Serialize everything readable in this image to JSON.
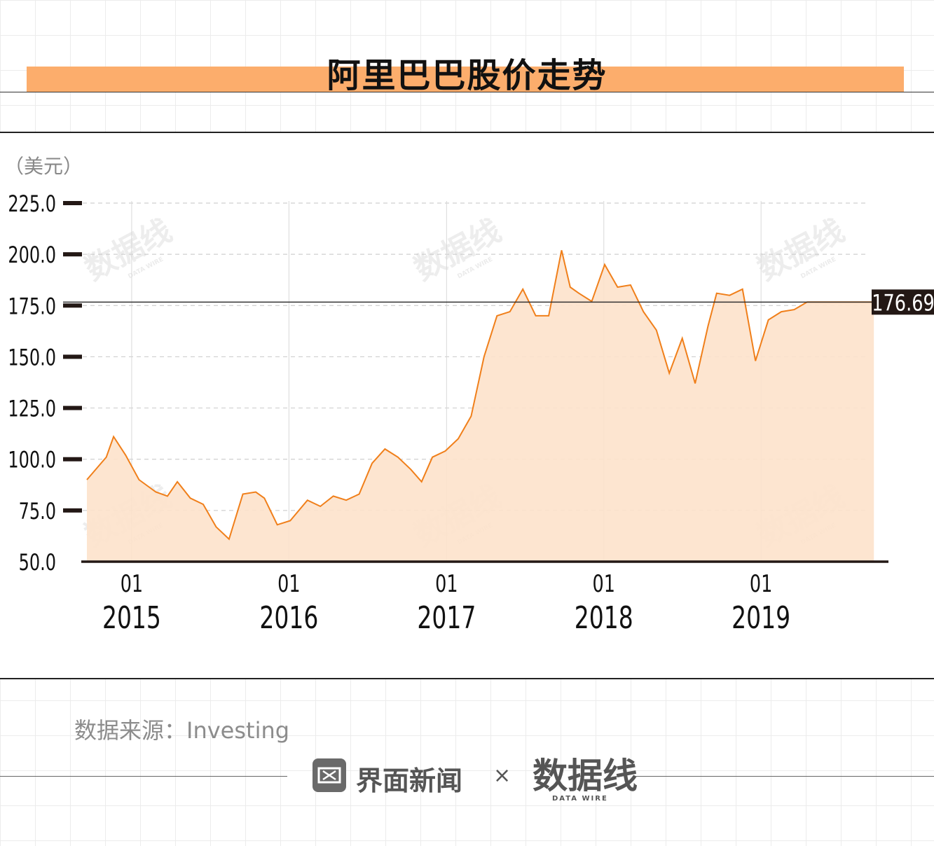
{
  "title": "阿里巴巴股价走势",
  "source": "数据来源：Investing",
  "footer": {
    "brand": "界面新闻",
    "separator": "×",
    "partner": "数据线",
    "partner_sub": "DATA WIRE"
  },
  "watermark": {
    "text": "数据线",
    "sub": "DATA WIRE"
  },
  "colors": {
    "accent": "#f07f1a",
    "fill": "#fde2cb",
    "title_band": "#fcad6c",
    "dark": "#231815"
  },
  "chart_data": {
    "type": "area",
    "title": "阿里巴巴股价走势",
    "ylabel": "（美元）",
    "ylim": [
      50,
      225
    ],
    "yticks": [
      "225.0",
      "200.0",
      "175.0",
      "150.0",
      "125.0",
      "100.0",
      "75.0",
      "50.0"
    ],
    "year_ticks": [
      {
        "month": "01",
        "year": "2015",
        "date": "2015-01-01"
      },
      {
        "month": "01",
        "year": "2016",
        "date": "2016-01-01"
      },
      {
        "month": "01",
        "year": "2017",
        "date": "2017-01-01"
      },
      {
        "month": "01",
        "year": "2018",
        "date": "2018-01-01"
      },
      {
        "month": "01",
        "year": "2019",
        "date": "2019-01-01"
      }
    ],
    "xlim": [
      "2014-09-19",
      "2019-10-01"
    ],
    "latest_value": "176.69",
    "reference_line": 176.69,
    "grid": "dashed horizontal, vertical at year ticks",
    "series": [
      {
        "x": [
          "2014-09-19",
          "2014-11-03",
          "2014-11-20",
          "2014-12-18",
          "2015-01-18",
          "2015-02-26",
          "2015-03-25",
          "2015-04-17",
          "2015-05-17",
          "2015-06-16",
          "2015-07-16",
          "2015-08-15",
          "2015-09-16",
          "2015-10-16",
          "2015-11-05",
          "2015-12-05",
          "2016-01-04",
          "2016-02-13",
          "2016-03-14",
          "2016-04-13",
          "2016-05-13",
          "2016-06-12",
          "2016-07-12",
          "2016-08-11",
          "2016-09-10",
          "2016-10-10",
          "2016-11-04",
          "2016-11-29",
          "2016-12-29",
          "2017-01-28",
          "2017-02-27",
          "2017-03-29",
          "2017-04-28",
          "2017-05-28",
          "2017-06-27",
          "2017-07-27",
          "2017-08-26",
          "2017-09-25",
          "2017-10-15",
          "2017-11-04",
          "2017-12-04",
          "2018-01-03",
          "2018-02-02",
          "2018-03-04",
          "2018-04-03",
          "2018-05-03",
          "2018-06-02",
          "2018-07-02",
          "2018-08-01",
          "2018-08-31",
          "2018-09-20",
          "2018-10-20",
          "2018-11-19",
          "2018-12-19",
          "2019-01-18",
          "2019-02-17",
          "2019-03-19",
          "2019-04-18",
          "2019-05-18",
          "2019-06-17",
          "2019-07-17",
          "2019-08-16",
          "2019-09-20"
        ],
        "values": [
          90,
          101,
          111,
          102,
          90,
          84,
          82,
          89,
          81,
          78,
          67,
          61,
          83,
          84,
          81,
          68,
          70,
          80,
          77,
          82,
          80,
          83,
          98,
          105,
          101,
          95,
          89,
          101,
          104,
          110,
          121,
          150,
          170,
          172,
          183,
          170,
          170,
          202,
          184,
          181,
          177,
          195,
          184,
          185,
          172,
          163,
          142,
          159,
          137,
          165,
          181,
          180,
          183,
          148,
          168,
          172,
          173,
          176.69,
          176.69,
          176.69,
          176.69,
          176.69,
          176.69
        ]
      }
    ]
  }
}
